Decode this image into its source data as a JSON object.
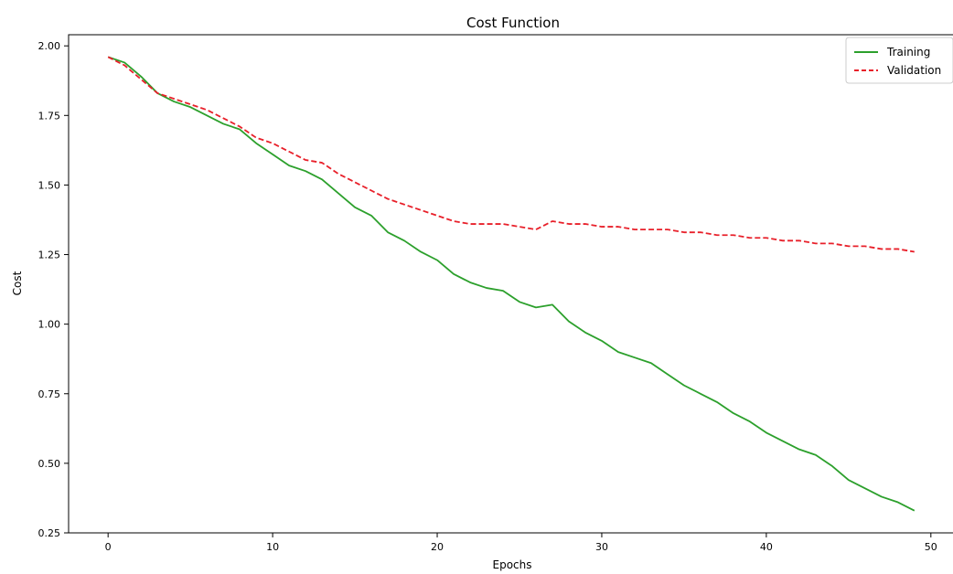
{
  "chart_data": {
    "type": "line",
    "title": "Cost Function",
    "xlabel": "Epochs",
    "ylabel": "Cost",
    "xlim": [
      -2.4,
      51.4
    ],
    "ylim": [
      0.25,
      2.04
    ],
    "xticks": [
      0,
      10,
      20,
      30,
      40,
      50
    ],
    "yticks": [
      0.25,
      0.5,
      0.75,
      1.0,
      1.25,
      1.5,
      1.75,
      2.0
    ],
    "xtick_labels": [
      "0",
      "10",
      "20",
      "30",
      "40",
      "50"
    ],
    "ytick_labels": [
      "0.25",
      "0.50",
      "0.75",
      "1.00",
      "1.25",
      "1.50",
      "1.75",
      "2.00"
    ],
    "grid": false,
    "legend_position": "top-right",
    "x": [
      0,
      1,
      2,
      3,
      4,
      5,
      6,
      7,
      8,
      9,
      10,
      11,
      12,
      13,
      14,
      15,
      16,
      17,
      18,
      19,
      20,
      21,
      22,
      23,
      24,
      25,
      26,
      27,
      28,
      29,
      30,
      31,
      32,
      33,
      34,
      35,
      36,
      37,
      38,
      39,
      40,
      41,
      42,
      43,
      44,
      45,
      46,
      47,
      48,
      49
    ],
    "series": [
      {
        "name": "Training",
        "color": "#2ca02c",
        "style": "solid",
        "values": [
          1.96,
          1.94,
          1.89,
          1.83,
          1.8,
          1.78,
          1.75,
          1.72,
          1.7,
          1.65,
          1.61,
          1.57,
          1.55,
          1.52,
          1.47,
          1.42,
          1.39,
          1.33,
          1.3,
          1.26,
          1.23,
          1.18,
          1.15,
          1.13,
          1.12,
          1.08,
          1.06,
          1.07,
          1.01,
          0.97,
          0.94,
          0.9,
          0.88,
          0.86,
          0.82,
          0.78,
          0.75,
          0.72,
          0.68,
          0.65,
          0.61,
          0.58,
          0.55,
          0.53,
          0.49,
          0.44,
          0.41,
          0.38,
          0.36,
          0.33
        ]
      },
      {
        "name": "Validation",
        "color": "#e8202a",
        "style": "dashed",
        "values": [
          1.96,
          1.93,
          1.88,
          1.83,
          1.81,
          1.79,
          1.77,
          1.74,
          1.71,
          1.67,
          1.65,
          1.62,
          1.59,
          1.58,
          1.54,
          1.51,
          1.48,
          1.45,
          1.43,
          1.41,
          1.39,
          1.37,
          1.36,
          1.36,
          1.36,
          1.35,
          1.34,
          1.37,
          1.36,
          1.36,
          1.35,
          1.35,
          1.34,
          1.34,
          1.34,
          1.33,
          1.33,
          1.32,
          1.32,
          1.31,
          1.31,
          1.3,
          1.3,
          1.29,
          1.29,
          1.28,
          1.28,
          1.27,
          1.27,
          1.26
        ]
      }
    ]
  }
}
